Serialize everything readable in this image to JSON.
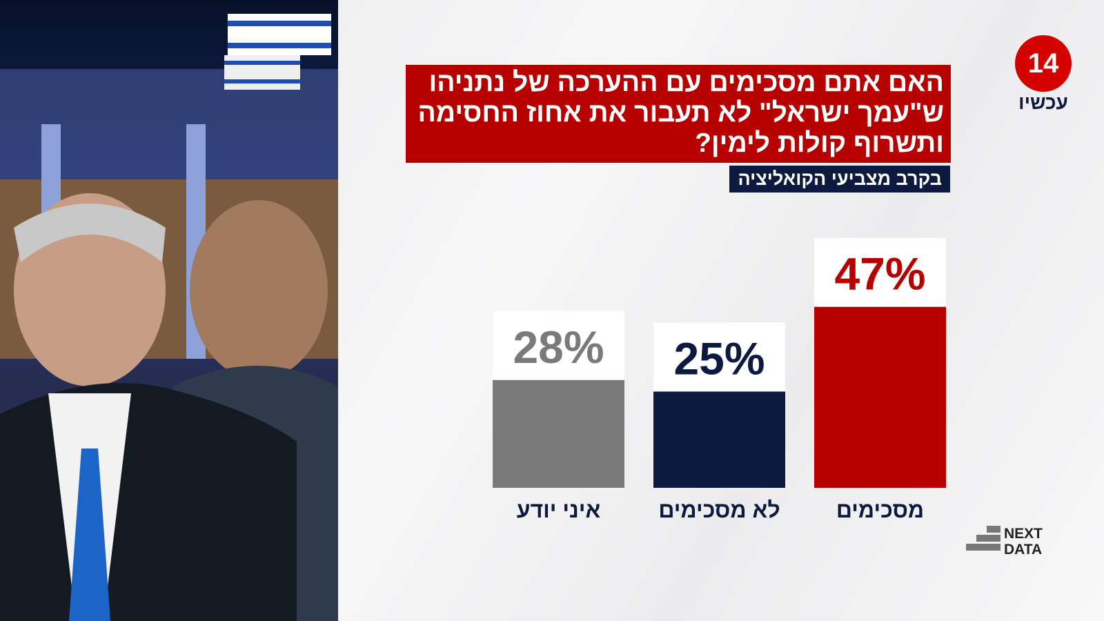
{
  "chart_data": {
    "type": "bar",
    "title": "האם אתם מסכימים עם ההערכה של נתניהו ש\"עמך ישראל\" לא תעבור את אחוז החסימה ותשרוף קולות לימין?",
    "subtitle": "בקרב מצביעי הקואליציה",
    "categories": [
      "מסכימים",
      "לא מסכימים",
      "איני יודע"
    ],
    "values": [
      47,
      25,
      28
    ],
    "value_labels": [
      "47%",
      "25%",
      "28%"
    ],
    "colors": [
      "#b70000",
      "#0c1a40",
      "#7a7a7a"
    ]
  },
  "branding": {
    "channel_number": "14",
    "channel_name": "עכשיו",
    "provider_lines": [
      "NEXT",
      "DATA"
    ]
  }
}
